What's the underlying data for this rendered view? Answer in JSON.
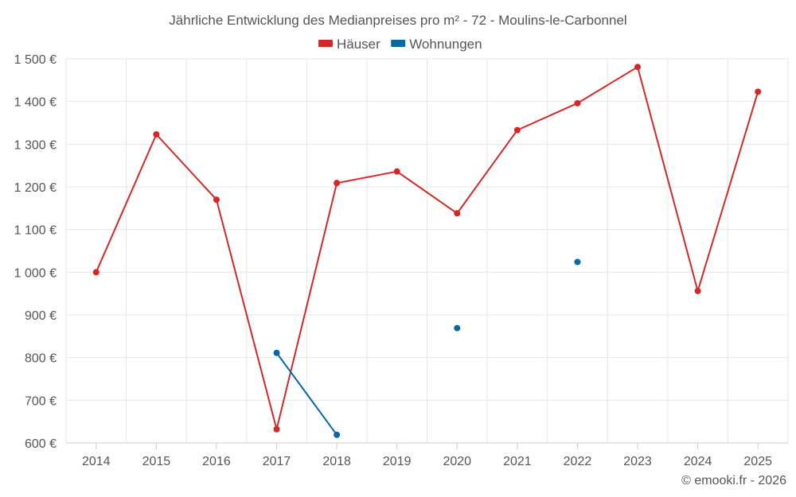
{
  "chart_data": {
    "type": "line",
    "title": "Jährliche Entwicklung des Medianpreises pro m² - 72 - Moulins-le-Carbonnel",
    "categories": [
      "2014",
      "2015",
      "2016",
      "2017",
      "2018",
      "2019",
      "2020",
      "2021",
      "2022",
      "2023",
      "2024",
      "2025"
    ],
    "ylim": [
      600,
      1500
    ],
    "yticks": [
      600,
      700,
      800,
      900,
      1000,
      1100,
      1200,
      1300,
      1400,
      1500
    ],
    "ytick_labels": [
      "600 €",
      "700 €",
      "800 €",
      "900 €",
      "1 000 €",
      "1 100 €",
      "1 200 €",
      "1 300 €",
      "1 400 €",
      "1 500 €"
    ],
    "grid": true,
    "legend_position": "top-center",
    "series": [
      {
        "name": "Häuser",
        "color": "#d62728",
        "values": [
          1000,
          1323,
          1170,
          632,
          1209,
          1236,
          1138,
          1333,
          1396,
          1481,
          956,
          1423
        ]
      },
      {
        "name": "Wohnungen",
        "color": "#0868a5",
        "values": [
          null,
          null,
          null,
          811,
          619,
          null,
          869,
          null,
          1024,
          null,
          null,
          null
        ]
      }
    ],
    "credit": "© emooki.fr - 2026"
  }
}
